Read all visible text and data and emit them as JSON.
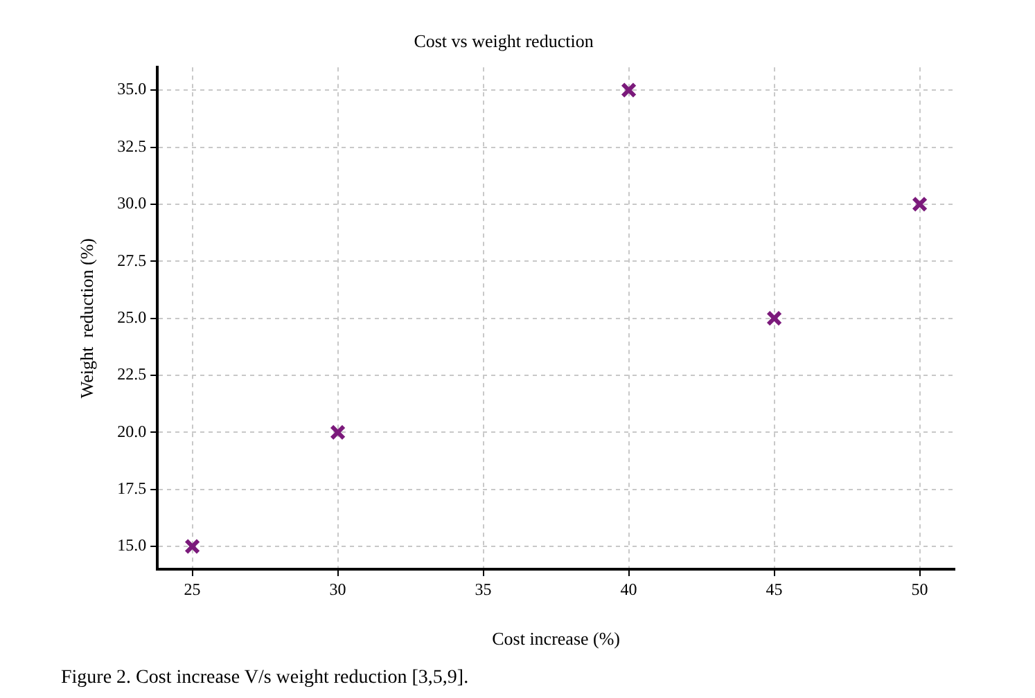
{
  "chart_data": {
    "type": "scatter",
    "title": "Cost vs weight reduction",
    "xlabel": "Cost increase (%)",
    "ylabel": "Weight  reduction (%)",
    "annotations": [
      "Figure 2. Cost increase V/s weight reduction [3,5,9]."
    ],
    "series": [
      {
        "color": "#7b1a7b",
        "x": [
          25,
          30,
          40,
          45,
          50
        ],
        "values": [
          15,
          20,
          35,
          25,
          30
        ]
      }
    ],
    "xlim": [
      23.8,
      51.2
    ],
    "xticks": [
      25,
      30,
      35,
      40,
      45,
      50
    ],
    "ylim": [
      14,
      36
    ],
    "yticks": [
      {
        "value": 15,
        "label": "15.0"
      },
      {
        "value": 17.5,
        "label": "17.5"
      },
      {
        "value": 20,
        "label": "20.0"
      },
      {
        "value": 22.5,
        "label": "22.5"
      },
      {
        "value": 25,
        "label": "25.0"
      },
      {
        "value": 27.5,
        "label": "27.5"
      },
      {
        "value": 30,
        "label": "30.0"
      },
      {
        "value": 32.5,
        "label": "32.5"
      },
      {
        "value": 35,
        "label": "35.0"
      }
    ],
    "grid": true,
    "legend": false,
    "marker": "cross"
  }
}
